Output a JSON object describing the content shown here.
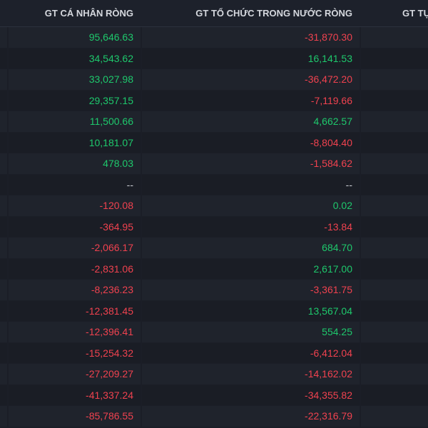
{
  "colors": {
    "positive": "#1ec86c",
    "negative": "#f0424f",
    "neutral": "#c9ccd2"
  },
  "header": {
    "col1": "GT CÁ NHÂN RÒNG",
    "col2": "GT TỔ CHỨC TRONG NƯỚC RÒNG",
    "col3": "GT TỰ"
  },
  "rows": [
    {
      "individual": "95,646.63",
      "institution": "-31,870.30"
    },
    {
      "individual": "34,543.62",
      "institution": "16,141.53"
    },
    {
      "individual": "33,027.98",
      "institution": "-36,472.20"
    },
    {
      "individual": "29,357.15",
      "institution": "-7,119.66"
    },
    {
      "individual": "11,500.66",
      "institution": "4,662.57"
    },
    {
      "individual": "10,181.07",
      "institution": "-8,804.40"
    },
    {
      "individual": "478.03",
      "institution": "-1,584.62"
    },
    {
      "individual": "--",
      "institution": "--"
    },
    {
      "individual": "-120.08",
      "institution": "0.02"
    },
    {
      "individual": "-364.95",
      "institution": "-13.84"
    },
    {
      "individual": "-2,066.17",
      "institution": "684.70"
    },
    {
      "individual": "-2,831.06",
      "institution": "2,617.00"
    },
    {
      "individual": "-8,236.23",
      "institution": "-3,361.75"
    },
    {
      "individual": "-12,381.45",
      "institution": "13,567.04"
    },
    {
      "individual": "-12,396.41",
      "institution": "554.25"
    },
    {
      "individual": "-15,254.32",
      "institution": "-6,412.04"
    },
    {
      "individual": "-27,209.27",
      "institution": "-14,162.02"
    },
    {
      "individual": "-41,337.24",
      "institution": "-34,355.82"
    },
    {
      "individual": "-85,786.55",
      "institution": "-22,316.79"
    }
  ]
}
